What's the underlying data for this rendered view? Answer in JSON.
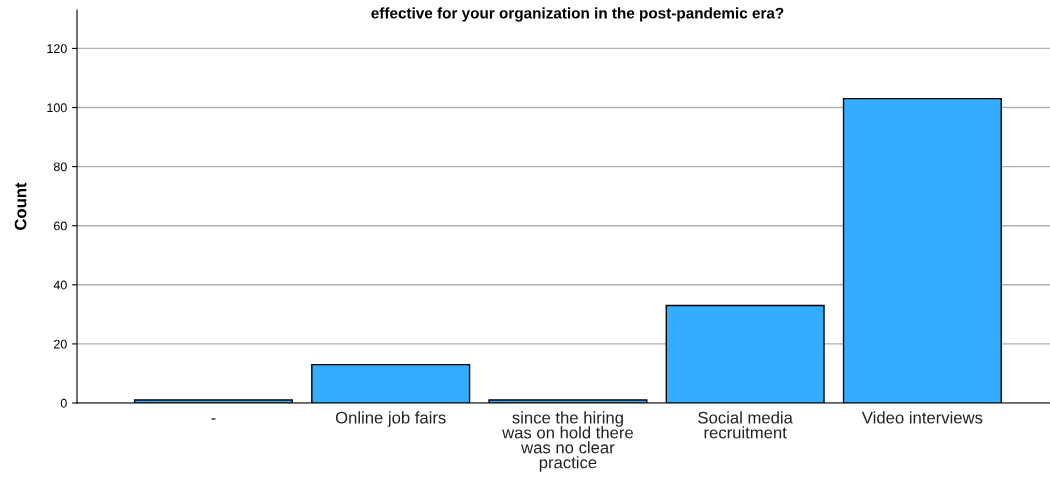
{
  "chart_data": {
    "type": "bar",
    "title": "effective for your organization in the post-pandemic era?",
    "ylabel": "Count",
    "categories": [
      "-",
      "Online job fairs",
      "since the hiring\nwas on hold there\nwas no clear\npractice",
      "Social media\nrecruitment",
      "Video interviews"
    ],
    "values": [
      1,
      13,
      1,
      33,
      103
    ],
    "color": "#33adff",
    "ylim": [
      0,
      133
    ],
    "yticks": [
      0,
      20,
      40,
      60,
      80,
      100,
      120
    ],
    "grid": "y"
  }
}
